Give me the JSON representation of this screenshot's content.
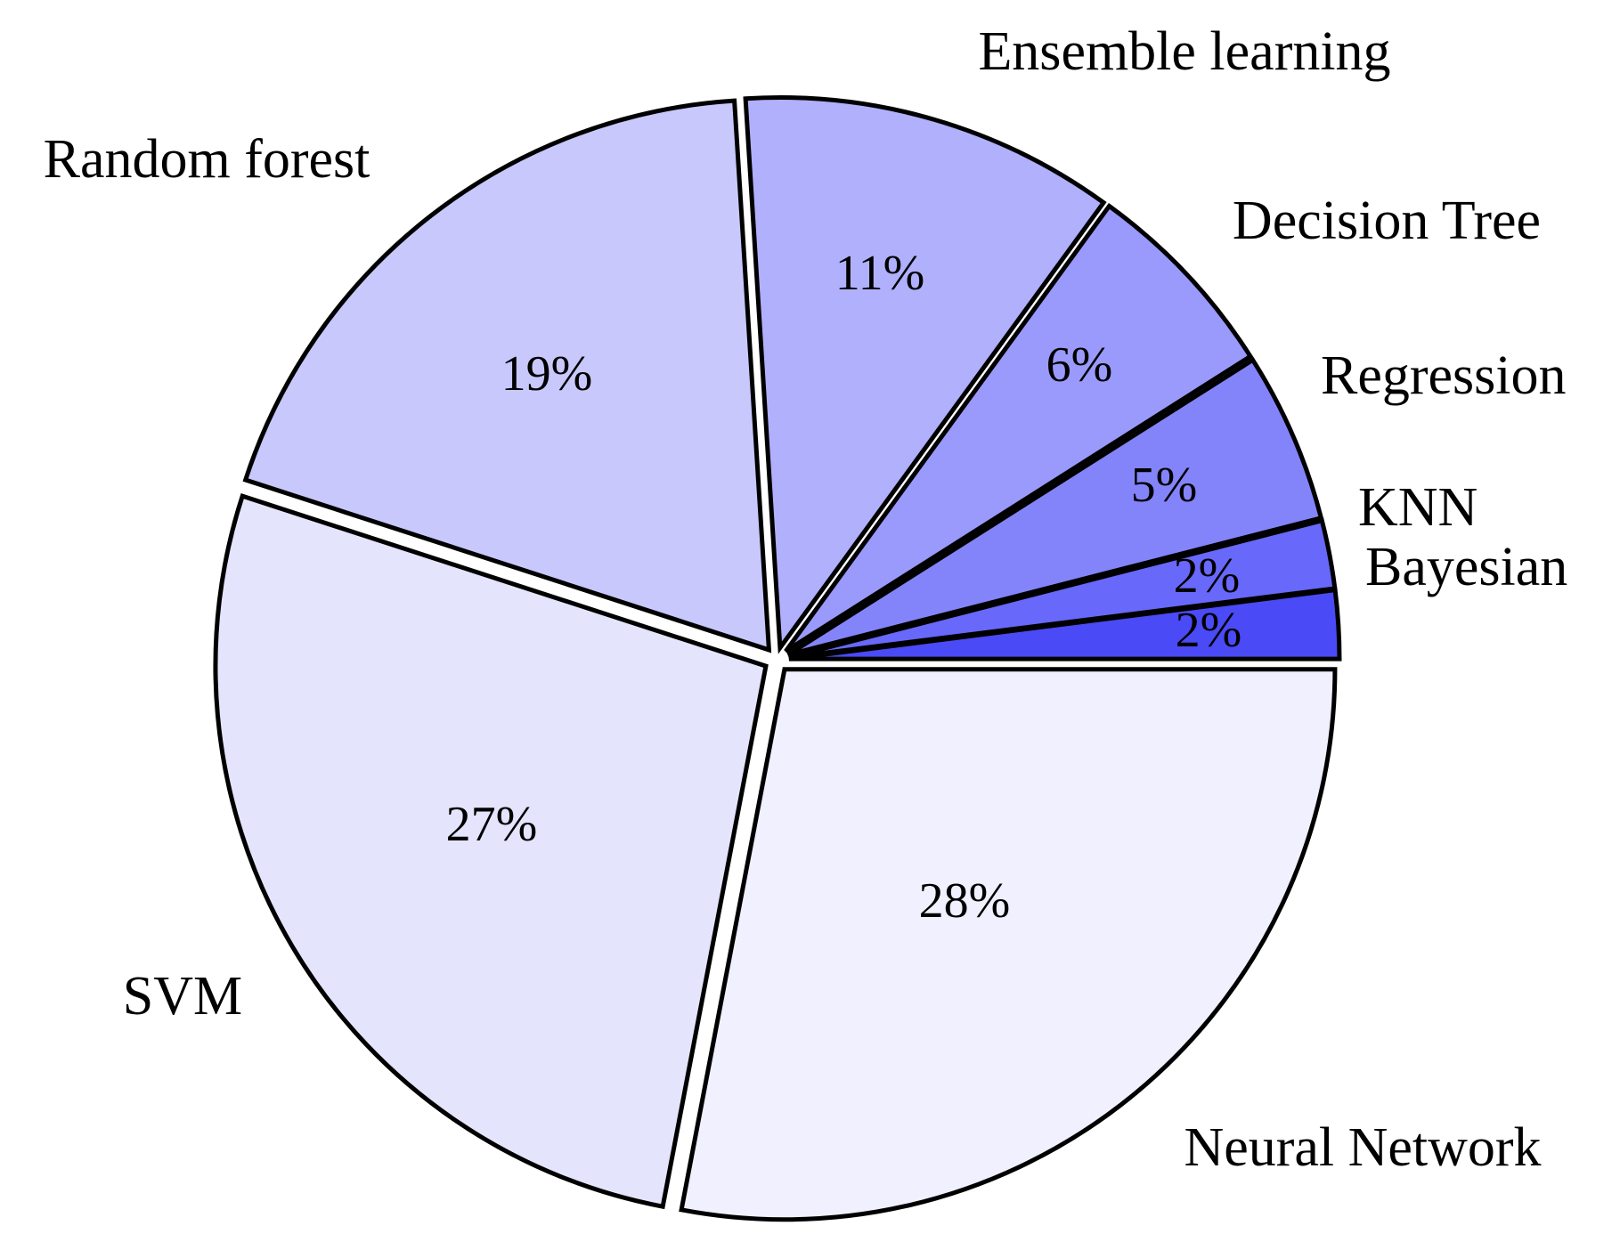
{
  "chart_data": {
    "type": "pie",
    "title": "",
    "slices": [
      {
        "label": "Neural Network",
        "value": 28,
        "value_label": "28%",
        "color": "#f0f0ff"
      },
      {
        "label": "SVM",
        "value": 27,
        "value_label": "27%",
        "color": "#e4e4fc"
      },
      {
        "label": "Random forest",
        "value": 19,
        "value_label": "19%",
        "color": "#c8c8fc"
      },
      {
        "label": "Ensemble learning",
        "value": 11,
        "value_label": "11%",
        "color": "#b0b0fc"
      },
      {
        "label": "Decision Tree",
        "value": 6,
        "value_label": "6%",
        "color": "#9a9afc"
      },
      {
        "label": "Regression",
        "value": 5,
        "value_label": "5%",
        "color": "#8484fa"
      },
      {
        "label": "KNN",
        "value": 2,
        "value_label": "2%",
        "color": "#6868fa"
      },
      {
        "label": "Bayesian",
        "value": 2,
        "value_label": "2%",
        "color": "#4a4af6"
      }
    ],
    "exploded": true,
    "start": "3 o'clock",
    "direction": "clockwise",
    "legend": "none"
  }
}
